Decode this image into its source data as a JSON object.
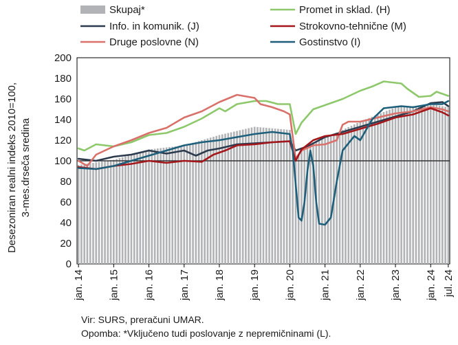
{
  "chart_data": {
    "type": "bar+line",
    "ylabel_line1": "Desezoniran realni indeks 2010=100,",
    "ylabel_line2": "3-mes.drseča sredina",
    "ylim": [
      0,
      200
    ],
    "yticks": [
      0,
      20,
      40,
      60,
      80,
      100,
      120,
      140,
      160,
      180,
      200
    ],
    "xlabels": [
      "jan. 14",
      "jan. 15",
      "jan. 16",
      "jan. 17",
      "jan. 18",
      "jan. 19",
      "jan. 20",
      "jan. 21",
      "jan. 22",
      "jan. 23",
      "jan. 24",
      "jul. 24"
    ],
    "x_start": "2014-01",
    "x_end": "2024-07",
    "reference_line": 100,
    "legend_placement": "top",
    "bars": {
      "name": "Skupaj*",
      "color": "#b1b3b6",
      "anchors": [
        [
          0,
          96
        ],
        [
          12,
          101
        ],
        [
          24,
          111
        ],
        [
          36,
          115
        ],
        [
          48,
          125
        ],
        [
          60,
          133
        ],
        [
          72,
          130
        ],
        [
          74,
          104
        ],
        [
          78,
          116
        ],
        [
          84,
          122
        ],
        [
          96,
          138
        ],
        [
          108,
          152
        ],
        [
          114,
          153
        ],
        [
          120,
          155
        ],
        [
          126,
          152
        ]
      ]
    },
    "series": [
      {
        "name": "Promet in sklad. (H)",
        "color": "#8dc86a",
        "anchors": [
          [
            0,
            112
          ],
          [
            2,
            110
          ],
          [
            6,
            116
          ],
          [
            12,
            114
          ],
          [
            18,
            118
          ],
          [
            24,
            125
          ],
          [
            30,
            127
          ],
          [
            36,
            133
          ],
          [
            42,
            141
          ],
          [
            48,
            151
          ],
          [
            50,
            148
          ],
          [
            54,
            155
          ],
          [
            60,
            158
          ],
          [
            64,
            158
          ],
          [
            68,
            155
          ],
          [
            72,
            155
          ],
          [
            74,
            126
          ],
          [
            76,
            137
          ],
          [
            80,
            150
          ],
          [
            84,
            154
          ],
          [
            90,
            160
          ],
          [
            96,
            168
          ],
          [
            100,
            172
          ],
          [
            104,
            177
          ],
          [
            110,
            175
          ],
          [
            112,
            170
          ],
          [
            116,
            162
          ],
          [
            120,
            163
          ],
          [
            122,
            167
          ],
          [
            124,
            165
          ],
          [
            126,
            163
          ]
        ]
      },
      {
        "name": "Info. in komunik. (J)",
        "color": "#2c3a4e",
        "anchors": [
          [
            0,
            102
          ],
          [
            6,
            100
          ],
          [
            12,
            104
          ],
          [
            18,
            106
          ],
          [
            24,
            110
          ],
          [
            30,
            107
          ],
          [
            36,
            110
          ],
          [
            40,
            105
          ],
          [
            44,
            110
          ],
          [
            48,
            112
          ],
          [
            54,
            116
          ],
          [
            60,
            117
          ],
          [
            66,
            118
          ],
          [
            72,
            119
          ],
          [
            74,
            110
          ],
          [
            78,
            114
          ],
          [
            84,
            123
          ],
          [
            90,
            128
          ],
          [
            96,
            133
          ],
          [
            102,
            138
          ],
          [
            108,
            143
          ],
          [
            114,
            148
          ],
          [
            120,
            156
          ],
          [
            124,
            157
          ],
          [
            126,
            153
          ]
        ]
      },
      {
        "name": "Druge poslovne (N)",
        "color": "#d9706a",
        "anchors": [
          [
            0,
            100
          ],
          [
            3,
            95
          ],
          [
            6,
            106
          ],
          [
            12,
            114
          ],
          [
            18,
            120
          ],
          [
            24,
            127
          ],
          [
            30,
            132
          ],
          [
            36,
            142
          ],
          [
            42,
            148
          ],
          [
            48,
            157
          ],
          [
            54,
            164
          ],
          [
            60,
            161
          ],
          [
            62,
            155
          ],
          [
            66,
            152
          ],
          [
            70,
            148
          ],
          [
            72,
            145
          ],
          [
            74,
            102
          ],
          [
            76,
            110
          ],
          [
            80,
            115
          ],
          [
            84,
            116
          ],
          [
            88,
            120
          ],
          [
            90,
            135
          ],
          [
            92,
            138
          ],
          [
            96,
            138
          ],
          [
            102,
            142
          ],
          [
            108,
            146
          ],
          [
            114,
            148
          ],
          [
            120,
            152
          ],
          [
            124,
            150
          ],
          [
            126,
            148
          ]
        ]
      },
      {
        "name": "Strokovno-tehnične (M)",
        "color": "#a4161a",
        "anchors": [
          [
            0,
            94
          ],
          [
            6,
            92
          ],
          [
            12,
            95
          ],
          [
            18,
            97
          ],
          [
            24,
            100
          ],
          [
            30,
            98
          ],
          [
            36,
            100
          ],
          [
            42,
            99
          ],
          [
            46,
            106
          ],
          [
            50,
            110
          ],
          [
            54,
            115
          ],
          [
            60,
            116
          ],
          [
            66,
            118
          ],
          [
            72,
            119
          ],
          [
            74,
            100
          ],
          [
            76,
            111
          ],
          [
            80,
            120
          ],
          [
            84,
            124
          ],
          [
            90,
            126
          ],
          [
            96,
            131
          ],
          [
            102,
            136
          ],
          [
            108,
            142
          ],
          [
            114,
            145
          ],
          [
            120,
            151
          ],
          [
            124,
            147
          ],
          [
            126,
            144
          ]
        ]
      },
      {
        "name": "Gostinstvo (I)",
        "color": "#1d5f7a",
        "anchors": [
          [
            0,
            93
          ],
          [
            6,
            92
          ],
          [
            12,
            95
          ],
          [
            18,
            100
          ],
          [
            24,
            105
          ],
          [
            30,
            110
          ],
          [
            36,
            115
          ],
          [
            42,
            118
          ],
          [
            48,
            120
          ],
          [
            54,
            123
          ],
          [
            60,
            126
          ],
          [
            66,
            128
          ],
          [
            72,
            126
          ],
          [
            73,
            110
          ],
          [
            75,
            45
          ],
          [
            76,
            42
          ],
          [
            77,
            60
          ],
          [
            78,
            90
          ],
          [
            79,
            110
          ],
          [
            80,
            95
          ],
          [
            81,
            60
          ],
          [
            82,
            39
          ],
          [
            84,
            38
          ],
          [
            86,
            45
          ],
          [
            88,
            80
          ],
          [
            90,
            110
          ],
          [
            94,
            124
          ],
          [
            96,
            120
          ],
          [
            100,
            140
          ],
          [
            104,
            151
          ],
          [
            110,
            153
          ],
          [
            114,
            152
          ],
          [
            120,
            155
          ],
          [
            124,
            155
          ],
          [
            126,
            158
          ]
        ]
      }
    ],
    "note_source": "Vir: SURS, preračuni UMAR.",
    "note_footnote": "Opomba: *Vključeno tudi poslovanje z nepremičninami (L)."
  }
}
